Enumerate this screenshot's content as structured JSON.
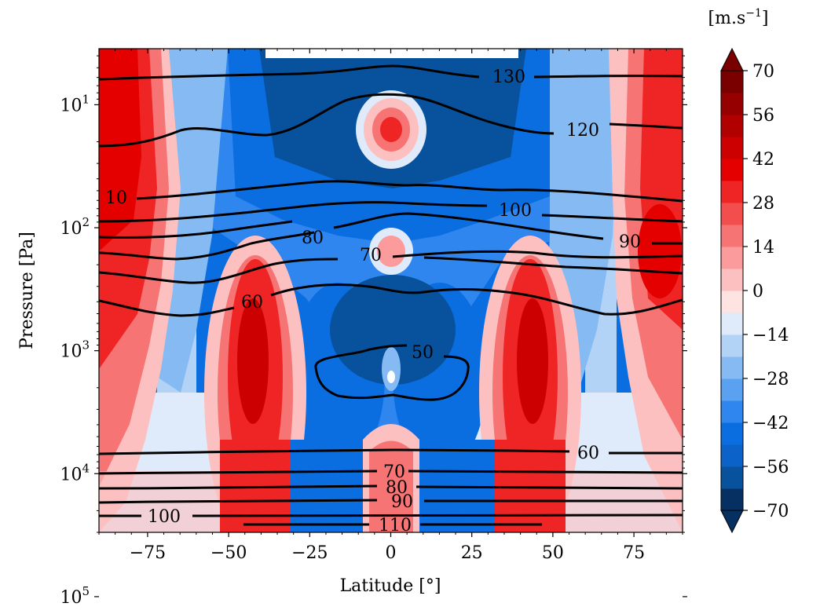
{
  "chart_data": {
    "type": "heatmap",
    "xlabel": "Latitude [°]",
    "ylabel": "Pressure [Pa]",
    "xlim": [
      -90,
      90
    ],
    "ylim_pa": [
      30000,
      3.5
    ],
    "y_scale": "log",
    "y_inverted": true,
    "x_ticks": [
      -75,
      -50,
      -25,
      0,
      25,
      50,
      75
    ],
    "x_tick_labels": [
      "−75",
      "−50",
      "−25",
      "0",
      "25",
      "50",
      "75"
    ],
    "y_ticks": [
      {
        "value": 10,
        "base": "10",
        "exp": "1"
      },
      {
        "value": 100,
        "base": "10",
        "exp": "2"
      },
      {
        "value": 1000,
        "base": "10",
        "exp": "3"
      },
      {
        "value": 10000,
        "base": "10",
        "exp": "4"
      },
      {
        "value": 100000,
        "base": "10",
        "exp": "5"
      }
    ],
    "colorbar": {
      "units": "[m.s−1]",
      "units_base": "[m.s",
      "units_sup": "−1",
      "units_end": "]",
      "min": -70,
      "max": 70,
      "step": 7,
      "tick_labels": [
        "70",
        "56",
        "42",
        "28",
        "14",
        "0",
        "−14",
        "−28",
        "−42",
        "−56",
        "−70"
      ],
      "colors": [
        "#053061",
        "#08519c",
        "#0b63c9",
        "#0a6ee0",
        "#2e86ee",
        "#5aa1f1",
        "#86baf3",
        "#b2d2f6",
        "#dfebfa",
        "#ffe3e3",
        "#fdc0c0",
        "#fb9b9b",
        "#f77474",
        "#f34e4e",
        "#ef2424",
        "#e50000",
        "#cc0000",
        "#b00000",
        "#960000",
        "#7a0000"
      ]
    },
    "wind_field_description": "zonal wind: prograde jets near ±80° and ±45°, retrograde broad region over mid-latitudes/equator, equatorial prograde spots near 25 Pa and 400 Pa",
    "temperature_contour_labels": [
      "130",
      "120",
      "10",
      "100",
      "90",
      "80",
      "70",
      "60",
      "50",
      "60",
      "70",
      "80",
      "90",
      "100",
      "110"
    ]
  }
}
